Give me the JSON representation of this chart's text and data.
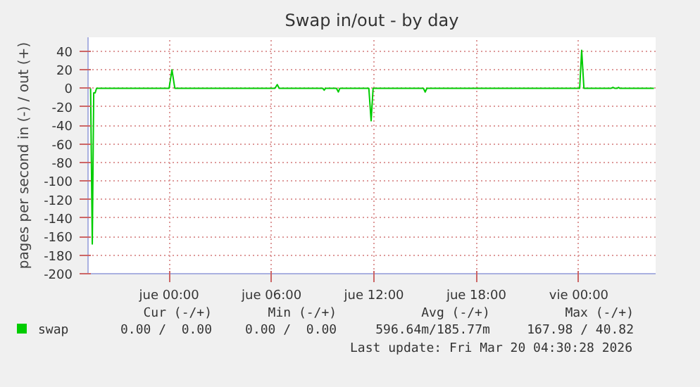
{
  "chart_data": {
    "type": "line",
    "title": "Swap in/out - by day",
    "ylabel": "pages per second in (-) / out (+)",
    "x": [
      "2026-03-18T19:24",
      "2026-03-18T19:30",
      "2026-03-18T19:35",
      "2026-03-18T19:40",
      "2026-03-18T19:45",
      "2026-03-19T00:00",
      "2026-03-19T00:10",
      "2026-03-19T00:20",
      "2026-03-19T06:12",
      "2026-03-19T06:20",
      "2026-03-19T06:27",
      "2026-03-19T09:00",
      "2026-03-19T09:05",
      "2026-03-19T09:10",
      "2026-03-19T09:48",
      "2026-03-19T09:55",
      "2026-03-19T10:00",
      "2026-03-19T11:42",
      "2026-03-19T11:50",
      "2026-03-19T11:57",
      "2026-03-19T14:54",
      "2026-03-19T15:00",
      "2026-03-19T15:06",
      "2026-03-20T00:03",
      "2026-03-20T00:10",
      "2026-03-20T00:18",
      "2026-03-20T01:54",
      "2026-03-20T02:00",
      "2026-03-20T02:06",
      "2026-03-20T02:15",
      "2026-03-20T02:20",
      "2026-03-20T02:24",
      "2026-03-20T04:24"
    ],
    "series": [
      {
        "name": "swap",
        "color": "#00cc00",
        "values": [
          0,
          -168,
          -5,
          -5,
          0,
          0,
          20,
          0,
          0,
          4,
          0,
          0,
          -2,
          0,
          0,
          -4,
          0,
          0,
          -35,
          0,
          0,
          -4,
          0,
          0,
          41,
          0,
          0,
          1,
          0,
          0,
          1,
          0,
          0
        ]
      }
    ],
    "xlim": [
      "2026-03-18T19:15",
      "2026-03-20T04:30"
    ],
    "xticks": [
      {
        "value": "2026-03-19T00:00",
        "label": "jue 00:00"
      },
      {
        "value": "2026-03-19T06:00",
        "label": "jue 06:00"
      },
      {
        "value": "2026-03-19T12:00",
        "label": "jue 12:00"
      },
      {
        "value": "2026-03-19T18:00",
        "label": "jue 18:00"
      },
      {
        "value": "2026-03-20T00:00",
        "label": "vie 00:00"
      }
    ],
    "ylim": [
      -200,
      55
    ],
    "yticks": [
      -200,
      -180,
      -160,
      -140,
      -120,
      -100,
      -80,
      -60,
      -40,
      -20,
      0,
      20,
      40
    ],
    "grid": true,
    "legend": "bottom left",
    "line_style": "solid",
    "marker": "none",
    "annotations": [
      "Cur (-/+)",
      "Min (-/+)",
      "Avg (-/+)",
      "Max (-/+)",
      "0.00 /  0.00",
      "0.00 /  0.00",
      "596.64m/185.77m",
      "167.98 / 40.82",
      "Last update: Fri Mar 20 04:30:28 2026"
    ]
  }
}
